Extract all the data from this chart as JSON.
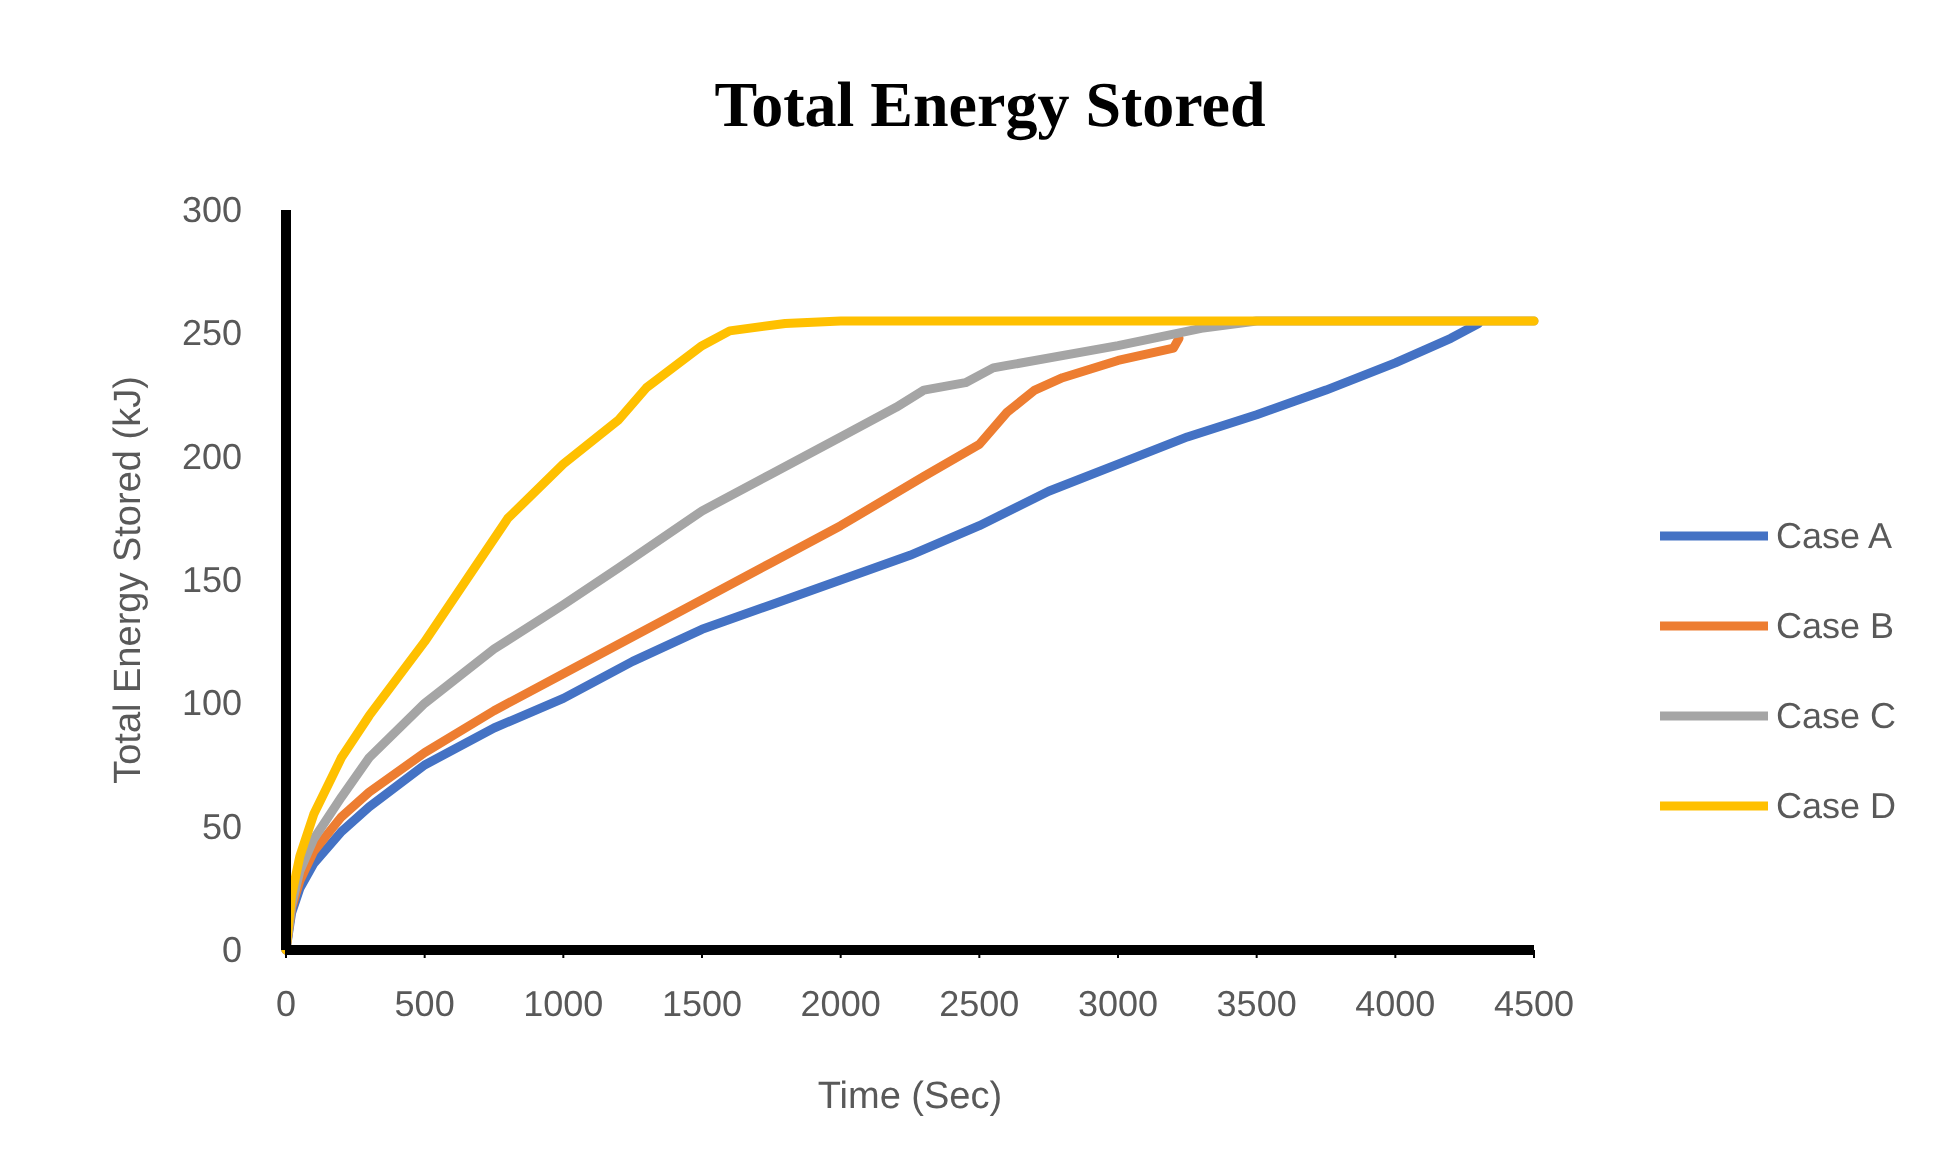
{
  "chart_data": {
    "type": "line",
    "title": "Total Energy Stored",
    "xlabel": "Time  (Sec)",
    "ylabel": "Total Energy Stored (kJ)",
    "xlim": [
      0,
      4500
    ],
    "ylim": [
      0,
      300
    ],
    "xticks": [
      0,
      500,
      1000,
      1500,
      2000,
      2500,
      3000,
      3500,
      4000,
      4500
    ],
    "yticks": [
      0,
      50,
      100,
      150,
      200,
      250,
      300
    ],
    "grid": false,
    "legend": "right",
    "marker": "none",
    "line_style": "solid",
    "series": [
      {
        "name": "Case A",
        "color": "#4472c4",
        "x": [
          0,
          20,
          50,
          100,
          200,
          300,
          500,
          750,
          1000,
          1250,
          1500,
          1750,
          2000,
          2250,
          2500,
          2750,
          3000,
          3250,
          3500,
          3750,
          4000,
          4100,
          4200,
          4300
        ],
        "values": [
          0,
          15,
          25,
          35,
          48,
          58,
          75,
          90,
          102,
          117,
          130,
          140,
          150,
          160,
          172,
          186,
          197,
          208,
          217,
          227,
          238,
          243,
          248,
          254
        ]
      },
      {
        "name": "Case B",
        "color": "#ed7d31",
        "x": [
          0,
          20,
          50,
          100,
          200,
          300,
          500,
          750,
          1000,
          1250,
          1500,
          1750,
          2000,
          2300,
          2500,
          2600,
          2700,
          2800,
          3000,
          3200,
          3220
        ],
        "values": [
          0,
          17,
          28,
          40,
          54,
          64,
          80,
          97,
          112,
          127,
          142,
          157,
          172,
          192,
          205,
          218,
          227,
          232,
          239,
          244,
          248
        ]
      },
      {
        "name": "Case C",
        "color": "#a5a5a5",
        "x": [
          0,
          20,
          50,
          100,
          200,
          300,
          500,
          750,
          1000,
          1200,
          1500,
          1750,
          2000,
          2200,
          2300,
          2450,
          2550,
          2600,
          3000,
          3300,
          3500,
          4500
        ],
        "values": [
          0,
          18,
          32,
          45,
          62,
          78,
          100,
          122,
          140,
          155,
          178,
          193,
          208,
          220,
          227,
          230,
          236,
          237,
          245,
          252,
          255,
          255
        ]
      },
      {
        "name": "Case D",
        "color": "#ffc000",
        "x": [
          0,
          20,
          50,
          100,
          200,
          300,
          500,
          650,
          800,
          1000,
          1200,
          1300,
          1500,
          1600,
          1800,
          2000,
          4500
        ],
        "values": [
          0,
          22,
          38,
          55,
          78,
          95,
          125,
          150,
          175,
          197,
          215,
          228,
          245,
          251,
          254,
          255,
          255
        ]
      }
    ]
  }
}
